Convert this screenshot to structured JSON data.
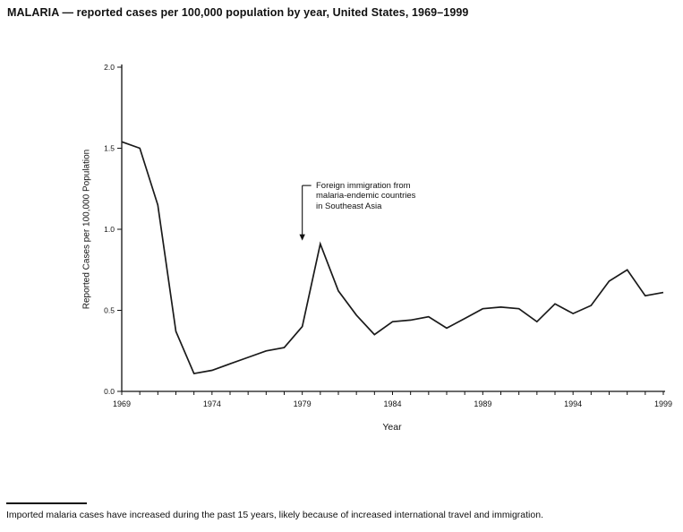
{
  "page": {
    "footnote": "Imported malaria cases have increased during the past 15 years, likely because of increased international travel and immigration."
  },
  "chart_data": {
    "type": "line",
    "title": "MALARIA — reported cases per 100,000 population by year, United States, 1969–1999",
    "xlabel": "Year",
    "ylabel": "Reported Cases per 100,000 Population",
    "xlim": [
      1969,
      1999
    ],
    "ylim": [
      0.0,
      2.0
    ],
    "y_ticks": [
      0.0,
      0.5,
      1.0,
      1.5,
      2.0
    ],
    "x_tick_labels": [
      1969,
      1974,
      1979,
      1984,
      1989,
      1994,
      1999
    ],
    "grid": false,
    "legend": "none",
    "line_color": "#1a1a1a",
    "x": [
      1969,
      1970,
      1971,
      1972,
      1973,
      1974,
      1975,
      1976,
      1977,
      1978,
      1979,
      1980,
      1981,
      1982,
      1983,
      1984,
      1985,
      1986,
      1987,
      1988,
      1989,
      1990,
      1991,
      1992,
      1993,
      1994,
      1995,
      1996,
      1997,
      1998,
      1999
    ],
    "values": [
      1.54,
      1.5,
      1.15,
      0.37,
      0.11,
      0.13,
      0.17,
      0.21,
      0.25,
      0.27,
      0.4,
      0.91,
      0.62,
      0.47,
      0.35,
      0.43,
      0.44,
      0.46,
      0.39,
      0.45,
      0.51,
      0.52,
      0.51,
      0.43,
      0.54,
      0.48,
      0.53,
      0.68,
      0.75,
      0.59,
      0.61
    ],
    "annotation": {
      "text": "Foreign immigration from\nmalaria-endemic countries\nin Southeast Asia",
      "arrow_x": 1979,
      "arrow_y_from": 1.27,
      "arrow_y_to": 0.93
    }
  }
}
